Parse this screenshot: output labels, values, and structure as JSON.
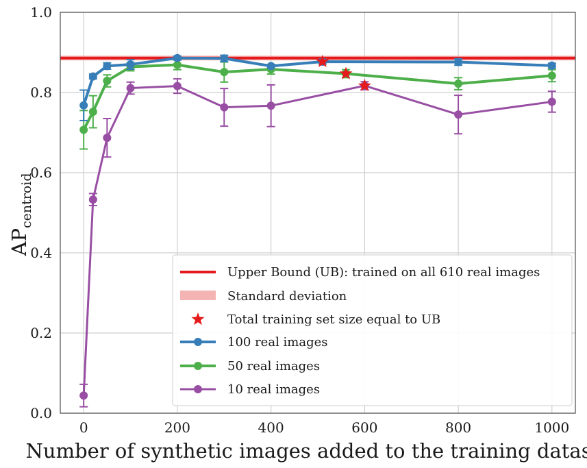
{
  "chart_data": {
    "type": "line",
    "title": "",
    "xlabel": "Number of synthetic images added to the training dataset",
    "ylabel": "AP",
    "ylabel_subscript": "centroid",
    "xlim": [
      -50,
      1050
    ],
    "ylim": [
      0.0,
      1.0
    ],
    "x_ticks": [
      0,
      200,
      400,
      600,
      800,
      1000
    ],
    "y_ticks": [
      0.0,
      0.2,
      0.4,
      0.6,
      0.8,
      1.0
    ],
    "x_tick_labels": [
      "0",
      "200",
      "400",
      "600",
      "800",
      "1000"
    ],
    "y_tick_labels": [
      "0.0",
      "0.2",
      "0.4",
      "0.6",
      "0.8",
      "1.0"
    ],
    "grid": true,
    "legend_position": "bottom-right",
    "upper_bound": {
      "label": "Upper Bound (UB): trained on all 610 real images",
      "value": 0.886,
      "std": 0.006,
      "std_label": "Standard deviation",
      "color": "#e41a1c",
      "std_color": "#f4b4b4"
    },
    "stars": {
      "label": "Total training set size equal to UB",
      "color": "#e41a1c",
      "points": [
        {
          "x": 510,
          "y": 0.877
        },
        {
          "x": 560,
          "y": 0.847
        },
        {
          "x": 600,
          "y": 0.817
        }
      ]
    },
    "x": [
      0,
      20,
      50,
      100,
      200,
      300,
      400,
      600,
      800,
      1000
    ],
    "series": [
      {
        "name": "100 real images",
        "color": "#377eb8",
        "linewidth": 4,
        "x": [
          0,
          20,
          50,
          100,
          200,
          300,
          400,
          510,
          800,
          1000
        ],
        "values": [
          0.768,
          0.84,
          0.866,
          0.87,
          0.886,
          0.885,
          0.866,
          0.877,
          0.876,
          0.867
        ],
        "errors": [
          0.038,
          0.006,
          0.008,
          0.012,
          0.005,
          0.008,
          0.004,
          0.006,
          0.008,
          0.006
        ]
      },
      {
        "name": "50 real images",
        "color": "#4daf4a",
        "linewidth": 4,
        "x": [
          0,
          20,
          50,
          100,
          200,
          300,
          400,
          560,
          800,
          1000
        ],
        "values": [
          0.707,
          0.752,
          0.829,
          0.864,
          0.869,
          0.851,
          0.858,
          0.847,
          0.822,
          0.842
        ],
        "errors": [
          0.048,
          0.04,
          0.015,
          0.01,
          0.012,
          0.025,
          0.012,
          0.01,
          0.015,
          0.015
        ]
      },
      {
        "name": "10 real images",
        "color": "#984ea3",
        "linewidth": 3,
        "x": [
          0,
          20,
          50,
          100,
          200,
          300,
          400,
          600,
          800,
          1000
        ],
        "values": [
          0.044,
          0.533,
          0.687,
          0.811,
          0.816,
          0.763,
          0.767,
          0.817,
          0.745,
          0.777
        ],
        "errors": [
          0.028,
          0.015,
          0.048,
          0.015,
          0.018,
          0.047,
          0.052,
          0.01,
          0.048,
          0.026
        ]
      }
    ]
  }
}
